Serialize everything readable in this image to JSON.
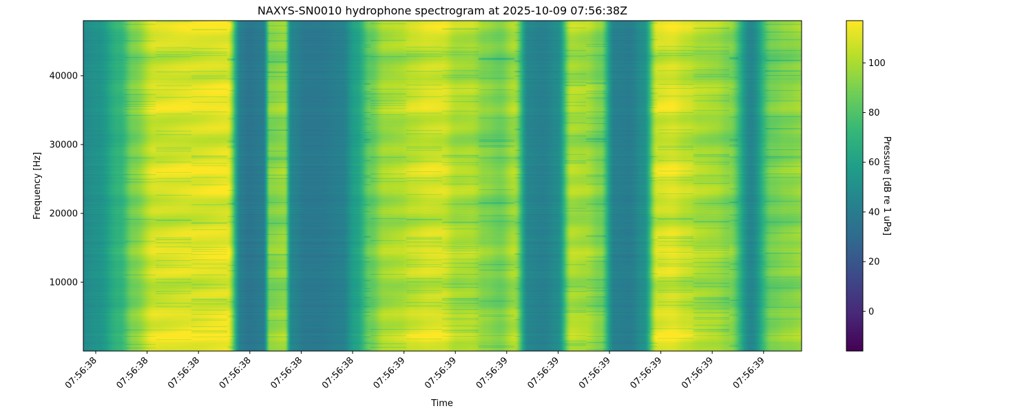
{
  "chart_data": {
    "type": "heatmap",
    "title": "NAXYS-SN0010 hydrophone spectrogram at 2025-10-09 07:56:38Z",
    "xlabel": "Time",
    "ylabel": "Frequency [Hz]",
    "colorbar_label": "Pressure [dB re 1 uPa]",
    "colormap": "viridis",
    "ylim": [
      0,
      48000
    ],
    "clim": [
      -16,
      117
    ],
    "y_ticks": [
      10000,
      20000,
      30000,
      40000
    ],
    "x_tick_labels": [
      "07:56:38",
      "07:56:38",
      "07:56:38",
      "07:56:38",
      "07:56:38",
      "07:56:38",
      "07:56:39",
      "07:56:39",
      "07:56:39",
      "07:56:39",
      "07:56:39",
      "07:56:39",
      "07:56:39",
      "07:56:39"
    ],
    "colorbar_ticks": [
      0,
      20,
      40,
      60,
      80,
      100
    ],
    "time_profile": {
      "x": [
        0.0,
        0.02,
        0.05,
        0.07,
        0.1,
        0.15,
        0.2,
        0.22,
        0.23,
        0.25,
        0.26,
        0.28,
        0.29,
        0.31,
        0.33,
        0.36,
        0.38,
        0.4,
        0.42,
        0.44,
        0.46,
        0.48,
        0.5,
        0.52,
        0.54,
        0.56,
        0.58,
        0.6,
        0.62,
        0.64,
        0.66,
        0.68,
        0.7,
        0.72,
        0.74,
        0.76,
        0.78,
        0.8,
        0.82,
        0.84,
        0.86,
        0.88,
        0.9,
        0.93,
        0.96,
        0.98,
        1.0
      ],
      "level_db": [
        48,
        52,
        70,
        90,
        108,
        110,
        112,
        40,
        36,
        40,
        92,
        95,
        45,
        38,
        38,
        42,
        60,
        85,
        98,
        100,
        105,
        108,
        108,
        100,
        100,
        92,
        88,
        98,
        45,
        42,
        48,
        100,
        98,
        90,
        42,
        40,
        50,
        108,
        110,
        105,
        100,
        98,
        92,
        45,
        88,
        92,
        95
      ]
    }
  }
}
